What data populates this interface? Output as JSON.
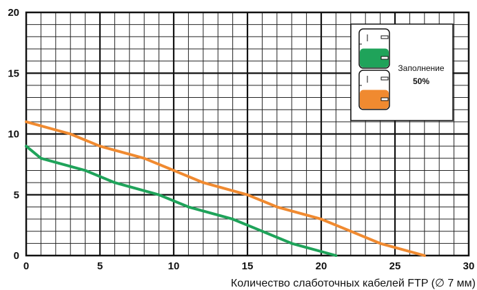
{
  "chart_data": {
    "type": "line",
    "xlabel": "Количество слаботочных кабелей FTP (∅ 7 мм)",
    "ylabel": "",
    "xlim": [
      0,
      30
    ],
    "ylim": [
      0,
      20
    ],
    "x_ticks": [
      "0",
      "5",
      "10",
      "15",
      "20",
      "25",
      "30"
    ],
    "y_ticks": [
      "0",
      "5",
      "10",
      "15",
      "20"
    ],
    "grid": true,
    "series": [
      {
        "color": "#f08a30",
        "x": [
          0,
          3,
          5,
          8,
          10,
          12,
          15,
          17,
          20,
          22,
          24,
          27
        ],
        "y": [
          11,
          10,
          9,
          8,
          7,
          6,
          5,
          4,
          3,
          2,
          1,
          0
        ]
      },
      {
        "color": "#1fa35a",
        "x": [
          0,
          1,
          4,
          6,
          9,
          11,
          14,
          16,
          18,
          21
        ],
        "y": [
          9,
          8,
          7,
          6,
          5,
          4,
          3,
          2,
          1,
          0
        ]
      }
    ],
    "legend": {
      "placement": "top-right",
      "text_line1": "Заполнение",
      "text_line2": "50%",
      "colors": [
        "#1fa35a",
        "#f08a30"
      ]
    }
  }
}
